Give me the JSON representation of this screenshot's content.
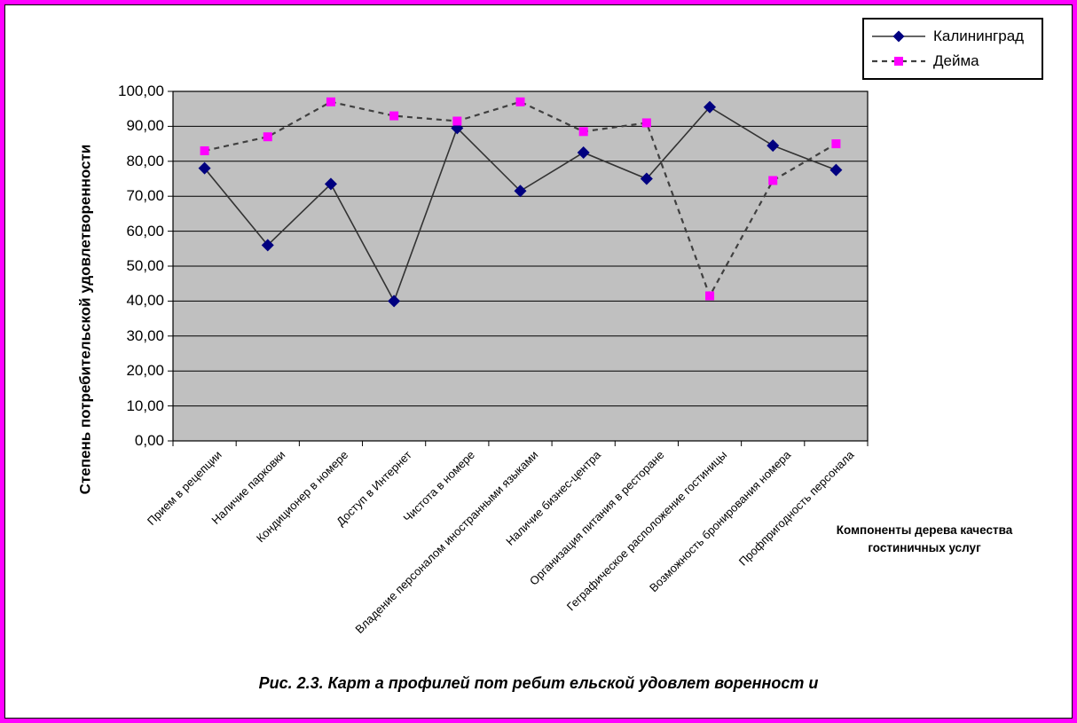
{
  "page": {
    "border_color": "#FF00FF",
    "background": "#FFFFFF"
  },
  "chart_data": {
    "type": "line",
    "plot_bg": "#C0C0C0",
    "grid": true,
    "legend_position": "top-right",
    "ylabel": "Степень потребительской удовлетворенности",
    "xlabel": "Компоненты дерева качества гостиничных услуг",
    "xlabel_lines": [
      "Компоненты дерева качества",
      "гостиничных услуг"
    ],
    "ylim": [
      0,
      100
    ],
    "ytick_step": 10,
    "ytick_labels": [
      "0,00",
      "10,00",
      "20,00",
      "30,00",
      "40,00",
      "50,00",
      "60,00",
      "70,00",
      "80,00",
      "90,00",
      "100,00"
    ],
    "categories": [
      "Прием в рецепции",
      "Наличие парковки",
      "Кондиционер в номере",
      "Доступ в Интернет",
      "Чистота в номере",
      "Владение персоналом иностранными языками",
      "Наличие бизнес-центра",
      "Организация питания в ресторане",
      "Геграфическое расположение гостиницы",
      "Возможность бронирования номера",
      "Профпригодность персонала"
    ],
    "series": [
      {
        "name": "Калининград",
        "values": [
          78,
          56,
          73.5,
          40,
          89.5,
          71.5,
          82.5,
          75,
          95.5,
          84.5,
          77.5
        ],
        "line": "solid",
        "line_color": "#333333",
        "marker": "diamond",
        "marker_color": "#000080"
      },
      {
        "name": "Дейма",
        "values": [
          83,
          87,
          97,
          93,
          91.5,
          97,
          88.5,
          91,
          41.5,
          74.5,
          85
        ],
        "line": "dashed",
        "line_color": "#404040",
        "marker": "square",
        "marker_color": "#FF00FF"
      }
    ]
  },
  "caption": "Рис. 2.3. Карт а профилей пот ребит ельской удовлет воренност и"
}
